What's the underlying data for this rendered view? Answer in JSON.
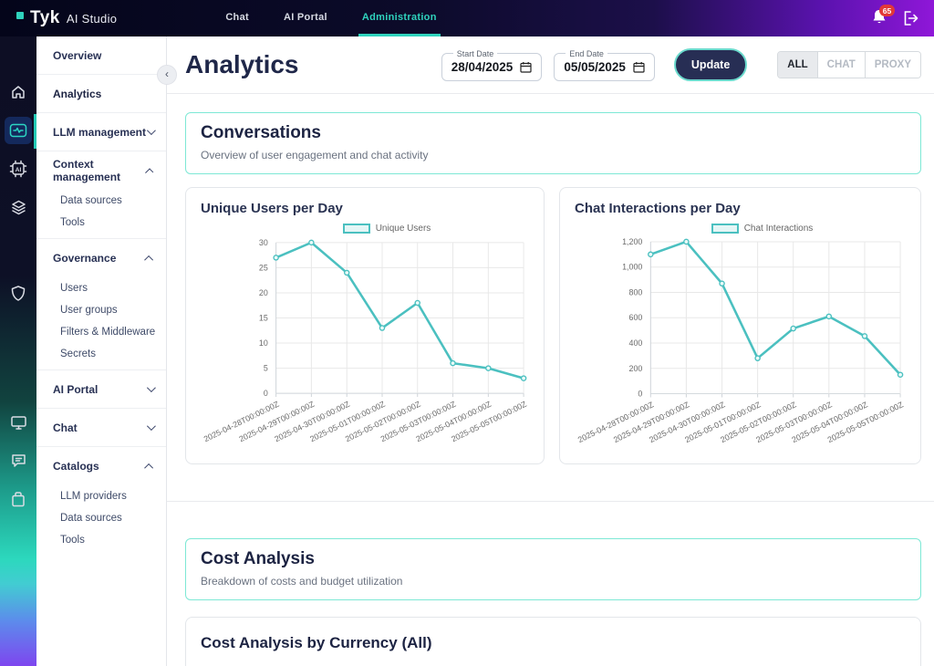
{
  "header": {
    "logo": {
      "brand": "Tyk",
      "product": "AI Studio"
    },
    "tabs": [
      {
        "label": "Chat"
      },
      {
        "label": "AI Portal"
      },
      {
        "label": "Administration",
        "active": true
      }
    ],
    "notification_count": "65"
  },
  "iconbar": {
    "items": [
      {
        "name": "home-icon"
      },
      {
        "name": "analytics-icon",
        "active": true
      },
      {
        "name": "ai-chip-icon"
      },
      {
        "name": "layers-icon"
      },
      {
        "name": "shield-icon"
      },
      {
        "name": "monitor-icon"
      },
      {
        "name": "chat-bubble-icon"
      },
      {
        "name": "catalog-box-icon"
      }
    ]
  },
  "nav": {
    "collapse_glyph": "‹",
    "items": [
      {
        "label": "Overview"
      },
      {
        "label": "Analytics",
        "active": true
      },
      {
        "label": "LLM management",
        "chevron": "down"
      },
      {
        "label": "Context management",
        "chevron": "up",
        "children": [
          "Data sources",
          "Tools"
        ]
      },
      {
        "label": "Governance",
        "chevron": "up",
        "children": [
          "Users",
          "User groups",
          "Filters & Middleware",
          "Secrets"
        ]
      },
      {
        "label": "AI Portal",
        "chevron": "down"
      },
      {
        "label": "Chat",
        "chevron": "down"
      },
      {
        "label": "Catalogs",
        "chevron": "up",
        "children": [
          "LLM providers",
          "Data sources",
          "Tools"
        ]
      }
    ]
  },
  "main": {
    "title": "Analytics",
    "controls": {
      "start_date": {
        "label": "Start Date",
        "value": "28/04/2025"
      },
      "end_date": {
        "label": "End Date",
        "value": "05/05/2025"
      },
      "update_label": "Update",
      "segments": [
        "ALL",
        "CHAT",
        "PROXY"
      ],
      "active_segment": "ALL"
    },
    "conversations": {
      "title": "Conversations",
      "subtitle": "Overview of user engagement and chat activity"
    },
    "cost": {
      "title": "Cost Analysis",
      "subtitle": "Breakdown of costs and budget utilization"
    },
    "partial_card_title": "Cost Analysis by Currency (All)"
  },
  "colors": {
    "accent_teal": "#2fd3bd",
    "chart_line": "#4bc0c0",
    "badge_red": "#e23838",
    "header_purple": "#8f17d8",
    "dark_navy": "#272e54"
  },
  "chart_data": [
    {
      "type": "line",
      "title": "Unique Users per Day",
      "legend": "Unique Users",
      "x": [
        "2025-04-28T00:00:00Z",
        "2025-04-29T00:00:00Z",
        "2025-04-30T00:00:00Z",
        "2025-05-01T00:00:00Z",
        "2025-05-02T00:00:00Z",
        "2025-05-03T00:00:00Z",
        "2025-05-04T00:00:00Z",
        "2025-05-05T00:00:00Z"
      ],
      "values": [
        27,
        30,
        24,
        13,
        18,
        6,
        5,
        3
      ],
      "ylim": [
        0,
        30
      ],
      "yticks": [
        0,
        5,
        10,
        15,
        20,
        25,
        30
      ],
      "ytick_labels": [
        "0",
        "5",
        "10",
        "15",
        "20",
        "25",
        "30"
      ],
      "xlabel": "",
      "ylabel": "",
      "grid": true,
      "legend_position": "top",
      "line_color": "#4bc0c0"
    },
    {
      "type": "line",
      "title": "Chat Interactions per Day",
      "legend": "Chat Interactions",
      "x": [
        "2025-04-28T00:00:00Z",
        "2025-04-29T00:00:00Z",
        "2025-04-30T00:00:00Z",
        "2025-05-01T00:00:00Z",
        "2025-05-02T00:00:00Z",
        "2025-05-03T00:00:00Z",
        "2025-05-04T00:00:00Z",
        "2025-05-05T00:00:00Z"
      ],
      "values": [
        1100,
        1200,
        870,
        280,
        515,
        610,
        455,
        150
      ],
      "ylim": [
        0,
        1200
      ],
      "yticks": [
        0,
        200,
        400,
        600,
        800,
        1000,
        1200
      ],
      "ytick_labels": [
        "0",
        "200",
        "400",
        "600",
        "800",
        "1,000",
        "1,200"
      ],
      "xlabel": "",
      "ylabel": "",
      "grid": true,
      "legend_position": "top",
      "line_color": "#4bc0c0"
    }
  ]
}
